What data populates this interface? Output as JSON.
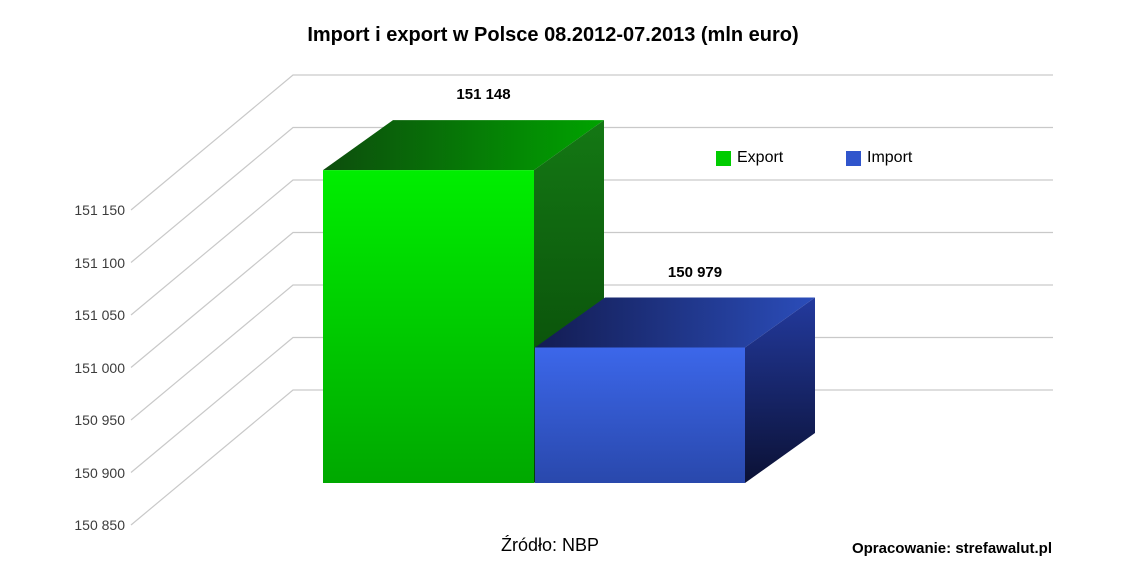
{
  "title": "Import i export w Polsce 08.2012-07.2013 (mln euro)",
  "source_note": "Źródło: NBP",
  "credit_note": "Opracowanie: strefawalut.pl",
  "legend": [
    {
      "label": "Export",
      "color": "#00cc00"
    },
    {
      "label": "Import",
      "color": "#3055cc"
    }
  ],
  "chart_data": {
    "type": "bar",
    "projection": "3d",
    "title": "Import i export w Polsce 08.2012-07.2013 (mln euro)",
    "categories": [
      "Export",
      "Import"
    ],
    "series": [
      {
        "name": "Export",
        "value": 151148,
        "display": "151 148",
        "color": "#00cc00"
      },
      {
        "name": "Import",
        "value": 150979,
        "display": "150 979",
        "color": "#3055cc"
      }
    ],
    "ylim": [
      150850,
      151150
    ],
    "ytick_step": 50,
    "yticks": [
      151150,
      151100,
      151050,
      151000,
      150950,
      150900,
      150850
    ],
    "ytick_labels": [
      "151 150",
      "151 100",
      "151 050",
      "151 000",
      "150 950",
      "150 900",
      "150 850"
    ],
    "grid": true,
    "gridline_color": "#c9c9c9",
    "legend_position": "top-right",
    "xlabel": "",
    "ylabel": ""
  }
}
